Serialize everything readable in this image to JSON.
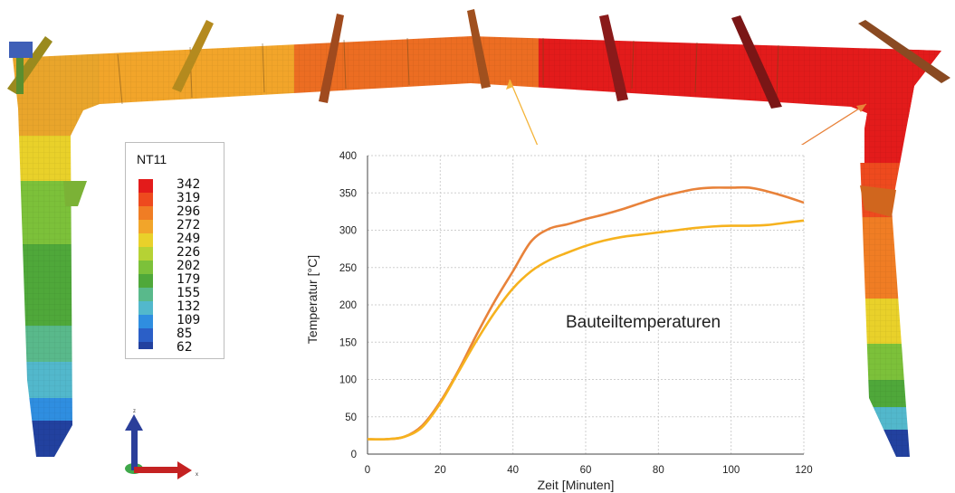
{
  "legend": {
    "title": "NT11",
    "levels": [
      "342",
      "319",
      "296",
      "272",
      "249",
      "226",
      "202",
      "179",
      "155",
      "132",
      "109",
      "85",
      "62"
    ],
    "colors": [
      "#e31b1b",
      "#ee4a1e",
      "#f07d24",
      "#f2a52a",
      "#e9d12a",
      "#b6d234",
      "#7cc13a",
      "#4fa83a",
      "#59b98b",
      "#52b8cc",
      "#2f8ee0",
      "#2b5fc7",
      "#22419f"
    ]
  },
  "axis_triad": {
    "z": "z",
    "x": "x"
  },
  "chart_data": {
    "type": "line",
    "annotation": "Bauteiltemperaturen",
    "xlabel": "Zeit [Minuten]",
    "ylabel": "Temperatur  [°C]",
    "xlim": [
      0,
      120
    ],
    "ylim": [
      0,
      400
    ],
    "xticks": [
      "0",
      "20",
      "40",
      "60",
      "80",
      "100",
      "120"
    ],
    "yticks": [
      "0",
      "50",
      "100",
      "150",
      "200",
      "250",
      "300",
      "350",
      "400"
    ],
    "grid": true,
    "series": [
      {
        "color": "#e8823a",
        "x": [
          0,
          5,
          10,
          15,
          20,
          25,
          30,
          35,
          40,
          45,
          50,
          55,
          60,
          65,
          70,
          75,
          80,
          85,
          90,
          95,
          100,
          105,
          110,
          115,
          120
        ],
        "y": [
          20,
          20,
          23,
          38,
          70,
          112,
          160,
          205,
          245,
          285,
          302,
          308,
          315,
          321,
          328,
          336,
          344,
          350,
          355,
          357,
          357,
          357,
          352,
          345,
          337
        ]
      },
      {
        "color": "#f6b21e",
        "x": [
          0,
          5,
          10,
          15,
          20,
          25,
          30,
          35,
          40,
          45,
          50,
          55,
          60,
          65,
          70,
          75,
          80,
          85,
          90,
          95,
          100,
          105,
          110,
          115,
          120
        ],
        "y": [
          20,
          20,
          23,
          36,
          68,
          110,
          152,
          190,
          222,
          245,
          260,
          270,
          279,
          286,
          291,
          294,
          297,
          300,
          303,
          305,
          306,
          306,
          307,
          310,
          313
        ]
      }
    ]
  }
}
